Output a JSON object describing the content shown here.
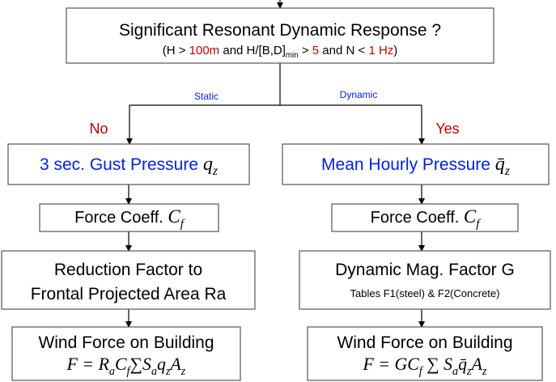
{
  "nodes": [
    {
      "lines": [
        {
          "segments": [
            {
              "text": "Significant Resonant Dynamic Response ?"
            }
          ]
        },
        {
          "segments": [
            {
              "text": "(H > "
            },
            {
              "text": "100m",
              "color": "#c00000"
            },
            {
              "text": " and H/[B,D]"
            },
            {
              "text": "min",
              "sub": true
            },
            {
              "text": " > "
            },
            {
              "text": "5",
              "color": "#c00000"
            },
            {
              "text": " and N < "
            },
            {
              "text": "1 Hz",
              "color": "#c00000"
            },
            {
              "text": ")"
            }
          ]
        }
      ]
    },
    {
      "lines": [
        {
          "segments": [
            {
              "text": "3 sec. Gust Pressure ",
              "color": "#0022dd"
            },
            {
              "text": "q",
              "italic": true
            },
            {
              "text": "z",
              "italic": true,
              "sub": true
            }
          ]
        }
      ]
    },
    {
      "lines": [
        {
          "segments": [
            {
              "text": "Mean Hourly Pressure ",
              "color": "#0022dd"
            },
            {
              "text": "q̄",
              "italic": true
            },
            {
              "text": "z",
              "italic": true,
              "sub": true
            }
          ]
        }
      ]
    },
    {
      "lines": [
        {
          "segments": [
            {
              "text": "Force Coeff. "
            },
            {
              "text": "C",
              "italic": true
            },
            {
              "text": "f",
              "italic": true,
              "sub": true
            }
          ]
        }
      ]
    },
    {
      "lines": [
        {
          "segments": [
            {
              "text": "Force Coeff. "
            },
            {
              "text": "C",
              "italic": true
            },
            {
              "text": "f",
              "italic": true,
              "sub": true
            }
          ]
        }
      ]
    },
    {
      "lines": [
        {
          "segments": [
            {
              "text": "Reduction Factor to"
            }
          ]
        },
        {
          "segments": [
            {
              "text": "Frontal Projected Area Ra"
            }
          ]
        }
      ]
    },
    {
      "lines": [
        {
          "segments": [
            {
              "text": "Dynamic Mag. Factor G"
            }
          ]
        },
        {
          "segments": [
            {
              "text": "Tables F1(steel) & F2(Concrete)"
            }
          ]
        }
      ]
    },
    {
      "lines": [
        {
          "segments": [
            {
              "text": "Wind Force on Building"
            }
          ]
        },
        {
          "segments": [
            {
              "text": "F = R",
              "italic": true
            },
            {
              "text": "a",
              "italic": true,
              "sub": true
            },
            {
              "text": "C",
              "italic": true
            },
            {
              "text": "f",
              "italic": true,
              "sub": true
            },
            {
              "text": "∑S",
              "italic": true
            },
            {
              "text": "a",
              "italic": true,
              "sub": true
            },
            {
              "text": "q",
              "italic": true
            },
            {
              "text": "z",
              "italic": true,
              "sub": true
            },
            {
              "text": "A",
              "italic": true
            },
            {
              "text": "z",
              "italic": true,
              "sub": true
            }
          ]
        }
      ]
    },
    {
      "lines": [
        {
          "segments": [
            {
              "text": "Wind Force on Building"
            }
          ]
        },
        {
          "segments": [
            {
              "text": "F = GC",
              "italic": true
            },
            {
              "text": "f",
              "italic": true,
              "sub": true
            },
            {
              "text": " ∑ S",
              "italic": true
            },
            {
              "text": "a",
              "italic": true,
              "sub": true
            },
            {
              "text": "q̄",
              "italic": true
            },
            {
              "text": "z",
              "italic": true,
              "sub": true
            },
            {
              "text": "A",
              "italic": true
            },
            {
              "text": "z",
              "italic": true,
              "sub": true
            }
          ]
        }
      ]
    }
  ],
  "edge_labels": [
    {
      "text": "Static",
      "color": "#0022dd"
    },
    {
      "text": "Dynamic",
      "color": "#0022dd"
    },
    {
      "text": "No",
      "color": "#c00000"
    },
    {
      "text": "Yes",
      "color": "#c00000"
    }
  ]
}
